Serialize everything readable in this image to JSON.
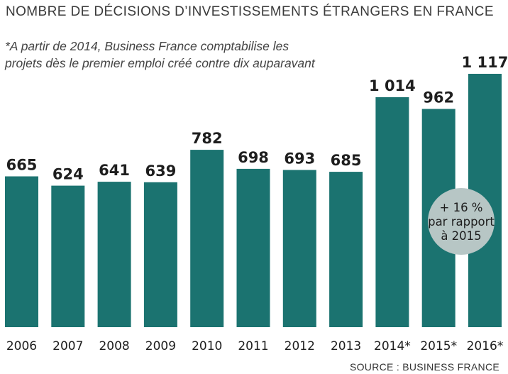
{
  "chart_data": {
    "type": "bar",
    "title": "NOMBRE DE DÉCISIONS D’INVESTISSEMENTS ÉTRANGERS EN FRANCE",
    "note": "*A partir de 2014, Business France comptabilise les projets dès le premier emploi créé contre dix auparavant",
    "source": "SOURCE : BUSINESS FRANCE",
    "categories": [
      "2006",
      "2007",
      "2008",
      "2009",
      "2010",
      "2011",
      "2012",
      "2013",
      "2014*",
      "2015*",
      "2016*"
    ],
    "values": [
      665,
      624,
      641,
      639,
      782,
      698,
      693,
      685,
      1014,
      962,
      1117
    ],
    "value_labels": [
      "665",
      "624",
      "641",
      "639",
      "782",
      "698",
      "693",
      "685",
      "1 014",
      "962",
      "1 117"
    ],
    "ylim": [
      0,
      1117
    ],
    "grid": false,
    "callout": {
      "category": "2016*",
      "lines": [
        "+ 16 %",
        "par rapport",
        "à 2015"
      ]
    },
    "colors": {
      "bar": "#1b7370",
      "callout": "#b7c6c5"
    }
  }
}
